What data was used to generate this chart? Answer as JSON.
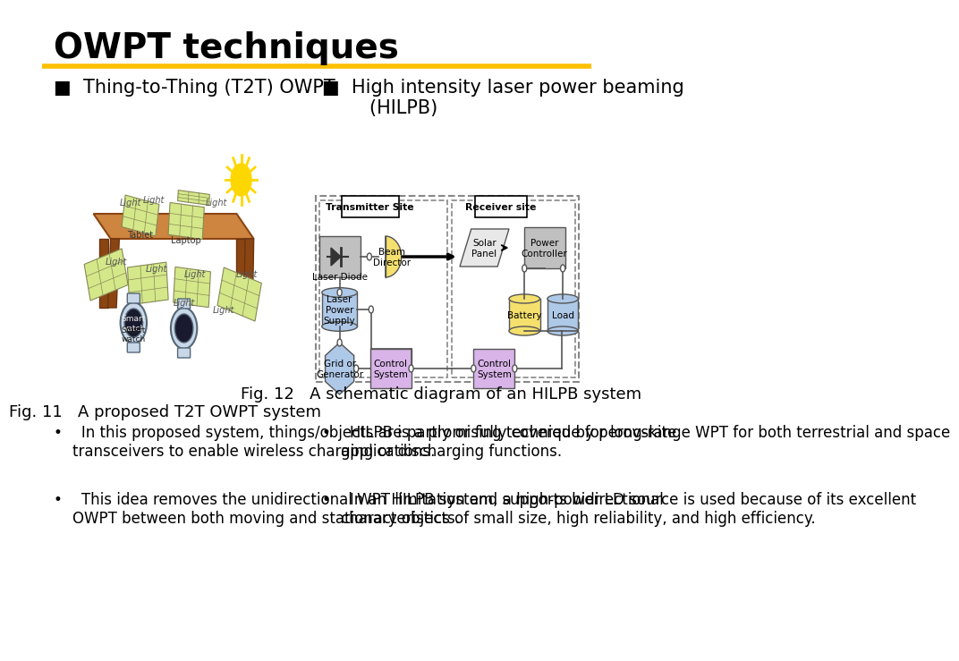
{
  "title": "OWPT techniques",
  "title_fontsize": 28,
  "title_color": "#000000",
  "gold_line_color": "#FFC000",
  "left_heading": "■  Thing-to-Thing (T2T) OWPT",
  "right_heading": "■  High intensity laser power beaming\n        (HILPB)",
  "heading_fontsize": 15,
  "fig_caption_left": "Fig. 11   A proposed T2T OWPT system",
  "fig_caption_right": "Fig. 12   A schematic diagram of an HILPB system",
  "caption_fontsize": 13,
  "bullet_left": [
    "•    In this proposed system, things/objects are partly or fully covered by perovskite\n    transceivers to enable wireless charging or discharging functions.",
    "•    This idea removes the unidirectional WPT limitation and supports bidirectional\n    OWPT between both moving and stationary objects."
  ],
  "bullet_right": [
    "•    HILPB is a promising technique for long-range WPT for both terrestrial and space\n    applications.",
    "•    In an HILPB system, a high-power LD source is used because of its excellent\n    characteristics of small size, high reliability, and high efficiency."
  ],
  "bullet_fontsize": 12,
  "bg_color": "#ffffff",
  "dashed_border_color": "#555555",
  "transmitter_label": "Transmitter Site",
  "receiver_label": "Receiver site",
  "box_laser_diode_color": "#c0c0c0",
  "box_beam_director_color": "#f5e06e",
  "box_laser_power_color": "#aec8e8",
  "box_grid_color": "#aec8e8",
  "box_control_tx_color": "#d8b4e8",
  "box_solar_panel_color": "#e8e8e8",
  "box_power_controller_color": "#c0c0c0",
  "box_battery_color": "#f5e06e",
  "box_load_color": "#aec8e8",
  "box_control_rx_color": "#d8b4e8"
}
